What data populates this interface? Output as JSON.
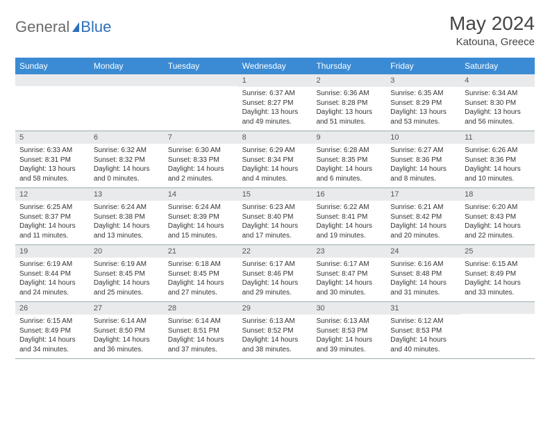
{
  "logo": {
    "text1": "General",
    "text2": "Blue"
  },
  "header": {
    "month_title": "May 2024",
    "location": "Katouna, Greece"
  },
  "colors": {
    "header_bg": "#3b8bd4",
    "header_text": "#ffffff",
    "daynum_bg": "#e8eaec",
    "body_text": "#333333",
    "logo_gray": "#6b6b6b",
    "logo_blue": "#2d6fb8"
  },
  "weekdays": [
    "Sunday",
    "Monday",
    "Tuesday",
    "Wednesday",
    "Thursday",
    "Friday",
    "Saturday"
  ],
  "weeks": [
    [
      {
        "n": "",
        "sr": "",
        "ss": "",
        "dl": ""
      },
      {
        "n": "",
        "sr": "",
        "ss": "",
        "dl": ""
      },
      {
        "n": "",
        "sr": "",
        "ss": "",
        "dl": ""
      },
      {
        "n": "1",
        "sr": "Sunrise: 6:37 AM",
        "ss": "Sunset: 8:27 PM",
        "dl": "Daylight: 13 hours and 49 minutes."
      },
      {
        "n": "2",
        "sr": "Sunrise: 6:36 AM",
        "ss": "Sunset: 8:28 PM",
        "dl": "Daylight: 13 hours and 51 minutes."
      },
      {
        "n": "3",
        "sr": "Sunrise: 6:35 AM",
        "ss": "Sunset: 8:29 PM",
        "dl": "Daylight: 13 hours and 53 minutes."
      },
      {
        "n": "4",
        "sr": "Sunrise: 6:34 AM",
        "ss": "Sunset: 8:30 PM",
        "dl": "Daylight: 13 hours and 56 minutes."
      }
    ],
    [
      {
        "n": "5",
        "sr": "Sunrise: 6:33 AM",
        "ss": "Sunset: 8:31 PM",
        "dl": "Daylight: 13 hours and 58 minutes."
      },
      {
        "n": "6",
        "sr": "Sunrise: 6:32 AM",
        "ss": "Sunset: 8:32 PM",
        "dl": "Daylight: 14 hours and 0 minutes."
      },
      {
        "n": "7",
        "sr": "Sunrise: 6:30 AM",
        "ss": "Sunset: 8:33 PM",
        "dl": "Daylight: 14 hours and 2 minutes."
      },
      {
        "n": "8",
        "sr": "Sunrise: 6:29 AM",
        "ss": "Sunset: 8:34 PM",
        "dl": "Daylight: 14 hours and 4 minutes."
      },
      {
        "n": "9",
        "sr": "Sunrise: 6:28 AM",
        "ss": "Sunset: 8:35 PM",
        "dl": "Daylight: 14 hours and 6 minutes."
      },
      {
        "n": "10",
        "sr": "Sunrise: 6:27 AM",
        "ss": "Sunset: 8:36 PM",
        "dl": "Daylight: 14 hours and 8 minutes."
      },
      {
        "n": "11",
        "sr": "Sunrise: 6:26 AM",
        "ss": "Sunset: 8:36 PM",
        "dl": "Daylight: 14 hours and 10 minutes."
      }
    ],
    [
      {
        "n": "12",
        "sr": "Sunrise: 6:25 AM",
        "ss": "Sunset: 8:37 PM",
        "dl": "Daylight: 14 hours and 11 minutes."
      },
      {
        "n": "13",
        "sr": "Sunrise: 6:24 AM",
        "ss": "Sunset: 8:38 PM",
        "dl": "Daylight: 14 hours and 13 minutes."
      },
      {
        "n": "14",
        "sr": "Sunrise: 6:24 AM",
        "ss": "Sunset: 8:39 PM",
        "dl": "Daylight: 14 hours and 15 minutes."
      },
      {
        "n": "15",
        "sr": "Sunrise: 6:23 AM",
        "ss": "Sunset: 8:40 PM",
        "dl": "Daylight: 14 hours and 17 minutes."
      },
      {
        "n": "16",
        "sr": "Sunrise: 6:22 AM",
        "ss": "Sunset: 8:41 PM",
        "dl": "Daylight: 14 hours and 19 minutes."
      },
      {
        "n": "17",
        "sr": "Sunrise: 6:21 AM",
        "ss": "Sunset: 8:42 PM",
        "dl": "Daylight: 14 hours and 20 minutes."
      },
      {
        "n": "18",
        "sr": "Sunrise: 6:20 AM",
        "ss": "Sunset: 8:43 PM",
        "dl": "Daylight: 14 hours and 22 minutes."
      }
    ],
    [
      {
        "n": "19",
        "sr": "Sunrise: 6:19 AM",
        "ss": "Sunset: 8:44 PM",
        "dl": "Daylight: 14 hours and 24 minutes."
      },
      {
        "n": "20",
        "sr": "Sunrise: 6:19 AM",
        "ss": "Sunset: 8:45 PM",
        "dl": "Daylight: 14 hours and 25 minutes."
      },
      {
        "n": "21",
        "sr": "Sunrise: 6:18 AM",
        "ss": "Sunset: 8:45 PM",
        "dl": "Daylight: 14 hours and 27 minutes."
      },
      {
        "n": "22",
        "sr": "Sunrise: 6:17 AM",
        "ss": "Sunset: 8:46 PM",
        "dl": "Daylight: 14 hours and 29 minutes."
      },
      {
        "n": "23",
        "sr": "Sunrise: 6:17 AM",
        "ss": "Sunset: 8:47 PM",
        "dl": "Daylight: 14 hours and 30 minutes."
      },
      {
        "n": "24",
        "sr": "Sunrise: 6:16 AM",
        "ss": "Sunset: 8:48 PM",
        "dl": "Daylight: 14 hours and 31 minutes."
      },
      {
        "n": "25",
        "sr": "Sunrise: 6:15 AM",
        "ss": "Sunset: 8:49 PM",
        "dl": "Daylight: 14 hours and 33 minutes."
      }
    ],
    [
      {
        "n": "26",
        "sr": "Sunrise: 6:15 AM",
        "ss": "Sunset: 8:49 PM",
        "dl": "Daylight: 14 hours and 34 minutes."
      },
      {
        "n": "27",
        "sr": "Sunrise: 6:14 AM",
        "ss": "Sunset: 8:50 PM",
        "dl": "Daylight: 14 hours and 36 minutes."
      },
      {
        "n": "28",
        "sr": "Sunrise: 6:14 AM",
        "ss": "Sunset: 8:51 PM",
        "dl": "Daylight: 14 hours and 37 minutes."
      },
      {
        "n": "29",
        "sr": "Sunrise: 6:13 AM",
        "ss": "Sunset: 8:52 PM",
        "dl": "Daylight: 14 hours and 38 minutes."
      },
      {
        "n": "30",
        "sr": "Sunrise: 6:13 AM",
        "ss": "Sunset: 8:53 PM",
        "dl": "Daylight: 14 hours and 39 minutes."
      },
      {
        "n": "31",
        "sr": "Sunrise: 6:12 AM",
        "ss": "Sunset: 8:53 PM",
        "dl": "Daylight: 14 hours and 40 minutes."
      },
      {
        "n": "",
        "sr": "",
        "ss": "",
        "dl": ""
      }
    ]
  ]
}
